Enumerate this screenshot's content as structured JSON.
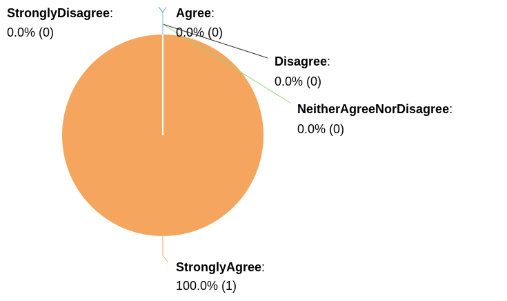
{
  "chart_data": {
    "type": "pie",
    "slices": [
      {
        "name": "StronglyAgree",
        "label": "StronglyAgree",
        "value_text": "100.0% (1)",
        "percent": 100.0,
        "count": 1,
        "color": "#F5A55E"
      },
      {
        "name": "StronglyDisagree",
        "label": "StronglyDisagree",
        "value_text": "0.0% (0)",
        "percent": 0.0,
        "count": 0,
        "color": "#5B8FD6"
      },
      {
        "name": "Agree",
        "label": "Agree",
        "value_text": "0.0% (0)",
        "percent": 0.0,
        "count": 0,
        "color": "#7EB1E8"
      },
      {
        "name": "Disagree",
        "label": "Disagree",
        "value_text": "0.0% (0)",
        "percent": 0.0,
        "count": 0,
        "color": "#333333"
      },
      {
        "name": "NeitherAgreeNorDisagree",
        "label": "NeitherAgreeNorDisagree",
        "value_text": "0.0% (0)",
        "percent": 0.0,
        "count": 0,
        "color": "#8FD86A"
      }
    ],
    "label_separator": ":"
  }
}
